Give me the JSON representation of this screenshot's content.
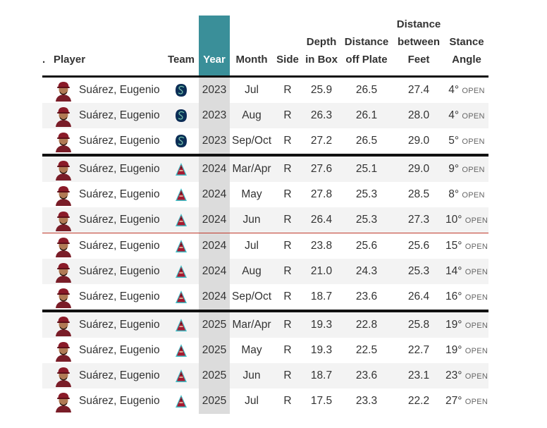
{
  "header": {
    "dot": ".",
    "player": "Player",
    "team": "Team",
    "year": "Year",
    "month": "Month",
    "side": "Side",
    "depth_l1": "Depth",
    "depth_l2": "in Box",
    "dist_plate_l1": "Distance",
    "dist_plate_l2": "off Plate",
    "dist_feet_l1": "Distance",
    "dist_feet_l2": "between",
    "dist_feet_l3": "Feet",
    "stance_l1": "Stance",
    "stance_l2": "Angle"
  },
  "colors": {
    "year_header": "#3a8f99",
    "year_column": "#dcdcdc",
    "row_alt": "#f3f3f3",
    "divider_red": "#c0392b"
  },
  "rows": [
    {
      "player": "Suárez, Eugenio",
      "team_icon": "mariners-logo-icon",
      "year": "2023",
      "month": "Jul",
      "side": "R",
      "depth": "25.9",
      "off_plate": "26.5",
      "between_feet": "27.4",
      "angle": "4°",
      "angle_label": "OPEN"
    },
    {
      "player": "Suárez, Eugenio",
      "team_icon": "mariners-logo-icon",
      "year": "2023",
      "month": "Aug",
      "side": "R",
      "depth": "26.3",
      "off_plate": "26.1",
      "between_feet": "28.0",
      "angle": "4°",
      "angle_label": "OPEN"
    },
    {
      "player": "Suárez, Eugenio",
      "team_icon": "mariners-logo-icon",
      "year": "2023",
      "month": "Sep/Oct",
      "side": "R",
      "depth": "27.2",
      "off_plate": "26.5",
      "between_feet": "29.0",
      "angle": "5°",
      "angle_label": "OPEN"
    },
    {
      "player": "Suárez, Eugenio",
      "team_icon": "diamondbacks-logo-icon",
      "year": "2024",
      "month": "Mar/Apr",
      "side": "R",
      "depth": "27.6",
      "off_plate": "25.1",
      "between_feet": "29.0",
      "angle": "9°",
      "angle_label": "OPEN"
    },
    {
      "player": "Suárez, Eugenio",
      "team_icon": "diamondbacks-logo-icon",
      "year": "2024",
      "month": "May",
      "side": "R",
      "depth": "27.8",
      "off_plate": "25.3",
      "between_feet": "28.5",
      "angle": "8°",
      "angle_label": "OPEN"
    },
    {
      "player": "Suárez, Eugenio",
      "team_icon": "diamondbacks-logo-icon",
      "year": "2024",
      "month": "Jun",
      "side": "R",
      "depth": "26.4",
      "off_plate": "25.3",
      "between_feet": "27.3",
      "angle": "10°",
      "angle_label": "OPEN"
    },
    {
      "player": "Suárez, Eugenio",
      "team_icon": "diamondbacks-logo-icon",
      "year": "2024",
      "month": "Jul",
      "side": "R",
      "depth": "23.8",
      "off_plate": "25.6",
      "between_feet": "25.6",
      "angle": "15°",
      "angle_label": "OPEN"
    },
    {
      "player": "Suárez, Eugenio",
      "team_icon": "diamondbacks-logo-icon",
      "year": "2024",
      "month": "Aug",
      "side": "R",
      "depth": "21.0",
      "off_plate": "24.3",
      "between_feet": "25.3",
      "angle": "14°",
      "angle_label": "OPEN"
    },
    {
      "player": "Suárez, Eugenio",
      "team_icon": "diamondbacks-logo-icon",
      "year": "2024",
      "month": "Sep/Oct",
      "side": "R",
      "depth": "18.7",
      "off_plate": "23.6",
      "between_feet": "26.4",
      "angle": "16°",
      "angle_label": "OPEN"
    },
    {
      "player": "Suárez, Eugenio",
      "team_icon": "diamondbacks-logo-icon",
      "year": "2025",
      "month": "Mar/Apr",
      "side": "R",
      "depth": "19.3",
      "off_plate": "22.8",
      "between_feet": "25.8",
      "angle": "19°",
      "angle_label": "OPEN"
    },
    {
      "player": "Suárez, Eugenio",
      "team_icon": "diamondbacks-logo-icon",
      "year": "2025",
      "month": "May",
      "side": "R",
      "depth": "19.3",
      "off_plate": "22.5",
      "between_feet": "22.7",
      "angle": "19°",
      "angle_label": "OPEN"
    },
    {
      "player": "Suárez, Eugenio",
      "team_icon": "diamondbacks-logo-icon",
      "year": "2025",
      "month": "Jun",
      "side": "R",
      "depth": "18.7",
      "off_plate": "23.6",
      "between_feet": "23.1",
      "angle": "23°",
      "angle_label": "OPEN"
    },
    {
      "player": "Suárez, Eugenio",
      "team_icon": "diamondbacks-logo-icon",
      "year": "2025",
      "month": "Jul",
      "side": "R",
      "depth": "17.5",
      "off_plate": "23.3",
      "between_feet": "22.2",
      "angle": "27°",
      "angle_label": "OPEN"
    }
  ],
  "dividers": [
    {
      "after_row": 2,
      "style": "thick"
    },
    {
      "after_row": 5,
      "style": "red"
    },
    {
      "after_row": 8,
      "style": "thick"
    }
  ]
}
